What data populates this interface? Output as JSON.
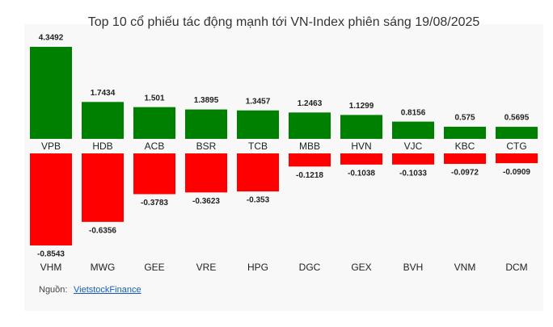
{
  "chart_data": {
    "type": "diverging-bar",
    "title": "Top 10 cổ phiếu tác động mạnh tới VN-Index phiên sáng 19/08/2025",
    "gainers": {
      "categories": [
        "VPB",
        "HDB",
        "ACB",
        "BSR",
        "TCB",
        "MBB",
        "HVN",
        "VJC",
        "KBC",
        "CTG"
      ],
      "values": [
        4.3492,
        1.7434,
        1.501,
        1.3895,
        1.3457,
        1.2463,
        1.1299,
        0.8156,
        0.575,
        0.5695
      ],
      "color": "#008000"
    },
    "losers": {
      "categories": [
        "VHM",
        "MWG",
        "GEE",
        "VRE",
        "HPG",
        "DGC",
        "GEX",
        "BVH",
        "VNM",
        "DCM"
      ],
      "values": [
        -0.8543,
        -0.6356,
        -0.3783,
        -0.3623,
        -0.353,
        -0.1218,
        -0.1038,
        -0.1033,
        -0.0972,
        -0.0909
      ],
      "color": "#ff0000"
    },
    "source": {
      "label": "Nguồn:",
      "link": "VietstockFinance"
    }
  }
}
